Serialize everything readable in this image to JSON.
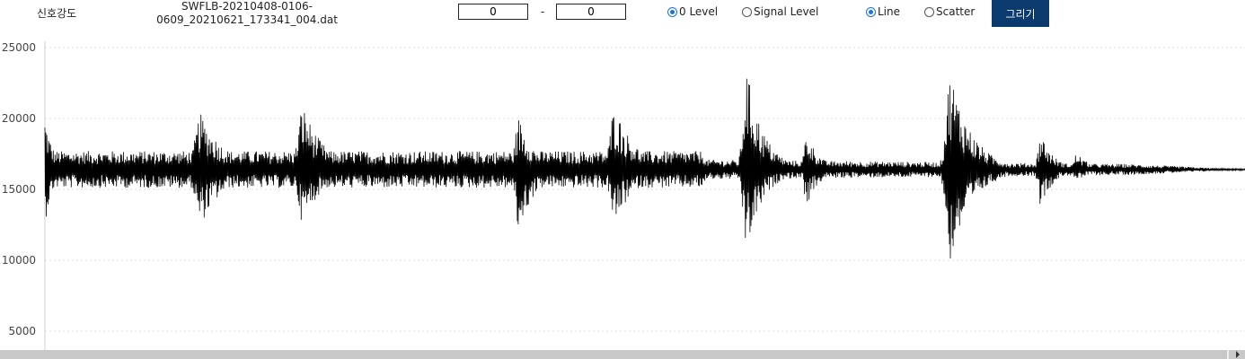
{
  "toolbar": {
    "signal_label": "신호강도",
    "filename_line1": "SWFLB-20210408-0106-",
    "filename_line2": "0609_20210621_173341_004.dat",
    "range_from": "0",
    "range_to": "0",
    "range_separator": "-",
    "level_options": [
      {
        "label": "0 Level",
        "checked": true
      },
      {
        "label": "Signal Level",
        "checked": false
      }
    ],
    "plot_type_options": [
      {
        "label": "Line",
        "checked": true
      },
      {
        "label": "Scatter",
        "checked": false
      }
    ],
    "draw_button_label": "그리기",
    "accent_color": "#0b3a6e"
  },
  "chart_data": {
    "type": "line",
    "title": "",
    "xlabel": "",
    "ylabel": "",
    "ylim": [
      3500,
      25000
    ],
    "yticks": [
      "25000",
      "20000",
      "15000",
      "10000",
      "5000"
    ],
    "grid": true,
    "baseline": 16400,
    "bursts": [
      {
        "center": 0.0,
        "width": 0.01,
        "max": 20300,
        "min": 12500
      },
      {
        "center": 0.13,
        "width": 0.03,
        "max": 20300,
        "min": 12500
      },
      {
        "center": 0.215,
        "width": 0.025,
        "max": 21000,
        "min": 12600
      },
      {
        "center": 0.395,
        "width": 0.02,
        "max": 20100,
        "min": 11900
      },
      {
        "center": 0.475,
        "width": 0.025,
        "max": 20900,
        "min": 12500
      },
      {
        "center": 0.585,
        "width": 0.02,
        "max": 23400,
        "min": 10600
      },
      {
        "center": 0.635,
        "width": 0.015,
        "max": 19000,
        "min": 13800
      },
      {
        "center": 0.755,
        "width": 0.025,
        "max": 23300,
        "min": 9900
      },
      {
        "center": 0.83,
        "width": 0.015,
        "max": 19000,
        "min": 13800
      },
      {
        "center": 0.86,
        "width": 0.015,
        "max": 17600,
        "min": 15500
      }
    ],
    "line_color": "#000000"
  }
}
